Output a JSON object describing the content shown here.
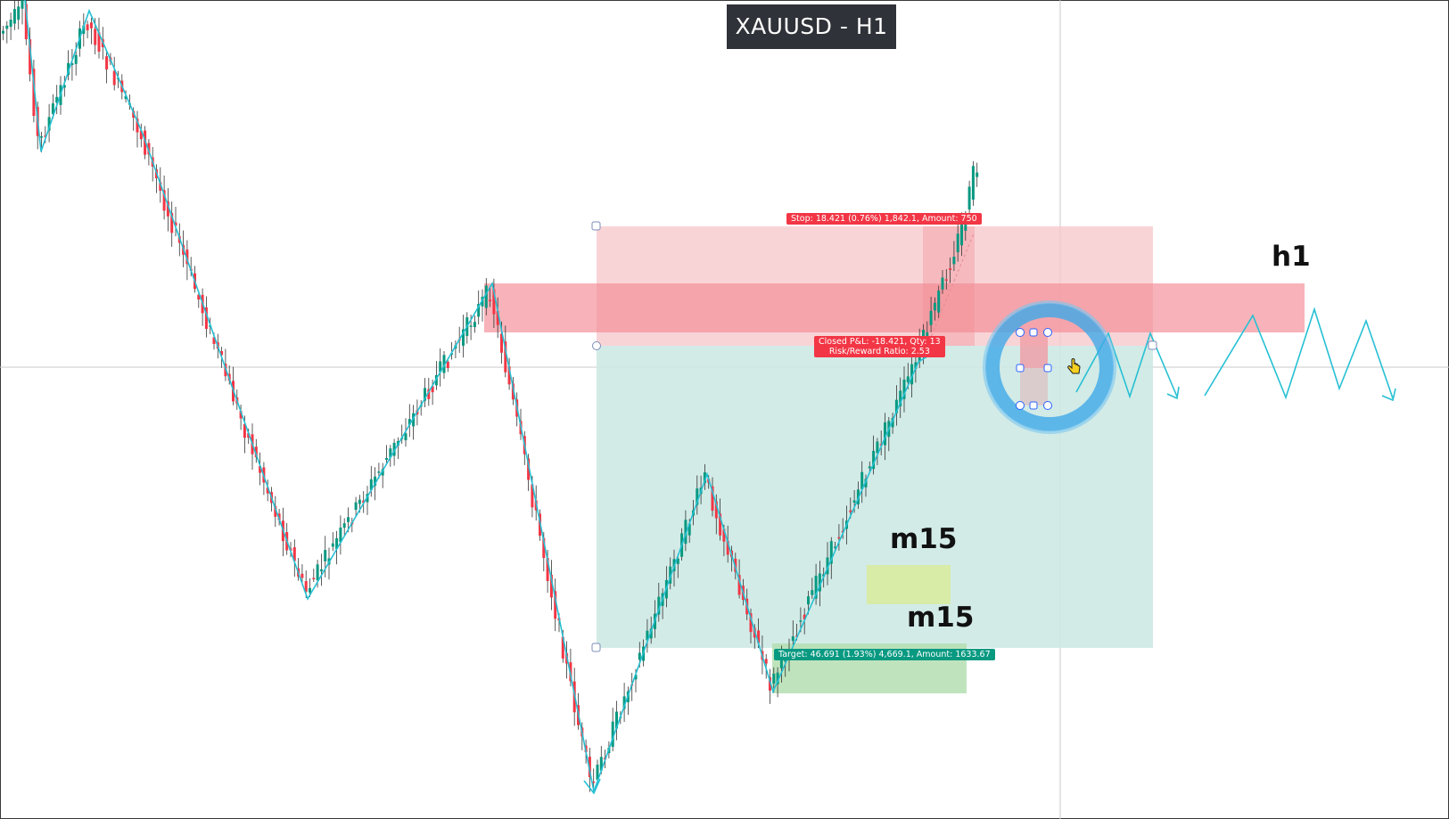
{
  "header": {
    "title": "XAUUSD - H1"
  },
  "position_tool": {
    "stop_label": "Stop: 18.421 (0.76%) 1,842.1, Amount: 750",
    "pnl_label_line1": "Closed P&L: -18.421, Qty: 13",
    "pnl_label_line2": "Risk/Reward Ratio: 2.53",
    "target_label": "Target: 46.691 (1.93%) 4,669.1, Amount: 1633.67"
  },
  "annotations": {
    "h1_label": "h1",
    "m15_upper_label": "m15",
    "m15_lower_label": "m15"
  },
  "colors": {
    "candle_up": "#089981",
    "candle_down": "#f23645",
    "zigzag": "#26c0d3",
    "stop_zone": "#f7c5c9",
    "target_zone": "#cde9e4",
    "h1_zone": "#f28b93",
    "m15_zone_upper": "#d8eba0",
    "m15_zone_lower": "#b4dfb1",
    "cursor_ring": "#3fa9e8"
  },
  "icons": {
    "cursor": "hand-pointer-icon",
    "click_indicator": "click-ripple-icon"
  }
}
